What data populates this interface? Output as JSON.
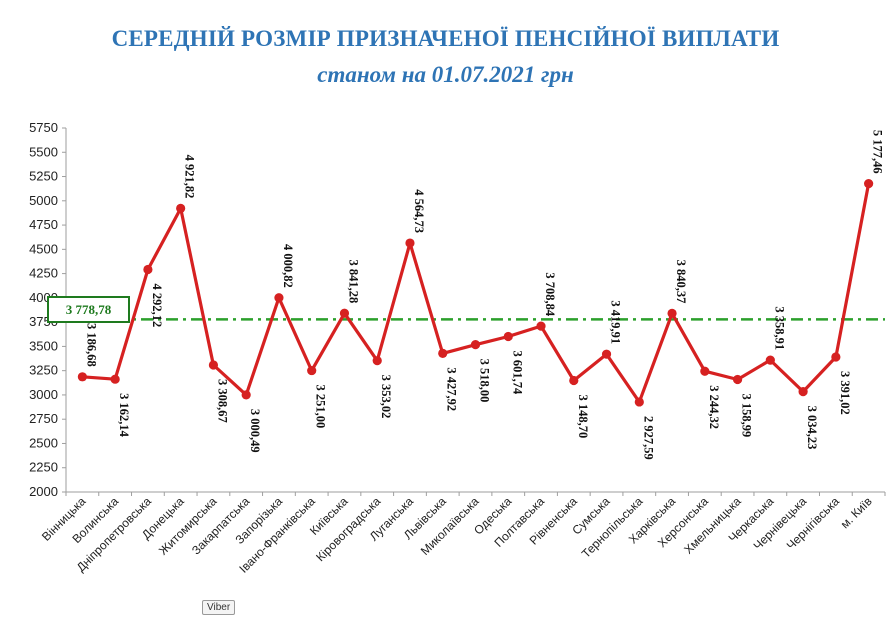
{
  "title": "СЕРЕДНІЙ РОЗМІР ПРИЗНАЧЕНОЇ ПЕНСІЙНОЇ ВИПЛАТИ",
  "subtitle": "станом на 01.07.2021 грн",
  "average_label": "3 778,78",
  "tooltip": "Viber",
  "colors": {
    "line": "#d62121",
    "average": "#2ca02c",
    "title": "#2e74b5",
    "axis": "#9e9e9e"
  },
  "chart_data": {
    "type": "line",
    "categories": [
      "Вінницька",
      "Волинська",
      "Дніпропетровська",
      "Донецька",
      "Житомирська",
      "Закарпатська",
      "Запорізька",
      "Івано-Франківська",
      "Київська",
      "Кіровоградська",
      "Луганська",
      "Львівська",
      "Миколаївська",
      "Одеська",
      "Полтавська",
      "Рівненська",
      "Сумська",
      "Тернопільська",
      "Харківська",
      "Херсонська",
      "Хмельницька",
      "Черкаська",
      "Чернівецька",
      "Чернігівська",
      "м. Київ"
    ],
    "series": [
      {
        "values": [
          3186.68,
          3162.14,
          4292.12,
          4921.82,
          3308.67,
          3000.49,
          4000.82,
          3251.0,
          3841.28,
          3353.02,
          4564.73,
          3427.92,
          3518.0,
          3601.74,
          3708.84,
          3148.7,
          3419.91,
          2927.59,
          3840.37,
          3244.32,
          3158.99,
          3358.91,
          3034.23,
          3391.02,
          5177.46
        ],
        "labels": [
          "3 186,68",
          "3 162,14",
          "4 292,12",
          "4 921,82",
          "3 308,67",
          "3 000,49",
          "4 000,82",
          "3 251,00",
          "3 841,28",
          "3 353,02",
          "4 564,73",
          "3 427,92",
          "3 518,00",
          "3 601,74",
          "3 708,84",
          "3 148,70",
          "3 419,91",
          "2 927,59",
          "3 840,37",
          "3 244,32",
          "3 158,99",
          "3 358,91",
          "3 034,23",
          "3 391,02",
          "5 177,46"
        ]
      }
    ],
    "average": 3778.78,
    "ylim": [
      2000,
      5750
    ],
    "yticks": [
      2000,
      2250,
      2500,
      2750,
      3000,
      3250,
      3500,
      3750,
      4000,
      4250,
      4500,
      4750,
      5000,
      5250,
      5500,
      5750
    ],
    "grid": false,
    "xlabel": "",
    "ylabel": ""
  }
}
